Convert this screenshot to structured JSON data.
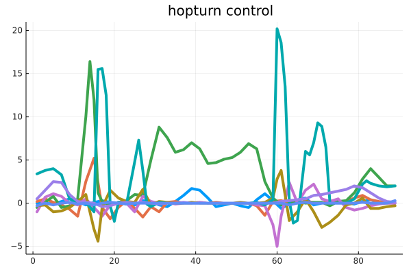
{
  "chart_data": {
    "type": "line",
    "title": "hopturn control",
    "xlabel": "",
    "ylabel": "",
    "xlim": [
      -1.7,
      90.9
    ],
    "ylim": [
      -5.9,
      21.0
    ],
    "xticks": [
      0,
      20,
      40,
      60,
      80
    ],
    "yticks": [
      -5,
      0,
      5,
      10,
      15,
      20
    ],
    "grid": true,
    "legend": "none",
    "series": [
      {
        "color": "#009AFA",
        "x": [
          1,
          3,
          5,
          7,
          9,
          11,
          13,
          15,
          17,
          19,
          21,
          23,
          25,
          27,
          29,
          31,
          33,
          35,
          37,
          39,
          41,
          43,
          45,
          47,
          49,
          51,
          53,
          55,
          57,
          59,
          61,
          63,
          65,
          67,
          69,
          71,
          73,
          75,
          77,
          79,
          81,
          83,
          85,
          87,
          89
        ],
        "y": [
          0,
          0,
          -0.1,
          0.2,
          0.5,
          0.2,
          -0.2,
          0.1,
          0.3,
          0.1,
          0,
          -0.1,
          -0.2,
          0.3,
          0.2,
          -0.2,
          -0.4,
          0.2,
          0.9,
          1.7,
          1.5,
          0.6,
          -0.4,
          -0.2,
          0,
          -0.3,
          -0.5,
          0.4,
          1.1,
          0.3,
          -0.6,
          -0.1,
          0.4,
          0.6,
          -0.2,
          0,
          0.1,
          0.2,
          0,
          -0.1,
          0.2,
          0.4,
          0.1,
          0,
          0
        ]
      },
      {
        "color": "#E36F47",
        "x": [
          1,
          3,
          5,
          7,
          9,
          11,
          13,
          15,
          17,
          19,
          21,
          23,
          25,
          27,
          29,
          31,
          33,
          35,
          37,
          39,
          41,
          43,
          45,
          47,
          49,
          51,
          53,
          55,
          57,
          59,
          61,
          63,
          65,
          67,
          69,
          71,
          73,
          75,
          77,
          79,
          81,
          83,
          85,
          87,
          89
        ],
        "y": [
          0.2,
          0.5,
          0.1,
          -0.2,
          -0.7,
          -1.5,
          2.5,
          5.2,
          -0.5,
          -1.8,
          -0.5,
          0.3,
          -0.6,
          -1.6,
          -0.4,
          -1.0,
          0.1,
          0.2,
          0,
          0,
          0.1,
          0,
          0.1,
          0,
          0,
          0,
          0,
          -0.3,
          -1.4,
          0.2,
          0.3,
          0.1,
          0,
          0.2,
          0.1,
          0,
          0.3,
          0.1,
          0.2,
          0.6,
          0.9,
          0.4,
          0.2,
          0,
          0
        ]
      },
      {
        "color": "#3EA44E",
        "x": [
          1,
          3,
          5,
          7,
          9,
          11,
          13,
          14,
          15,
          16,
          17,
          19,
          21,
          23,
          25,
          27,
          29,
          31,
          33,
          35,
          37,
          39,
          41,
          43,
          45,
          47,
          49,
          51,
          53,
          55,
          57,
          59,
          61,
          63,
          65,
          67,
          69,
          71,
          73,
          75,
          77,
          79,
          81,
          83,
          85,
          87,
          89
        ],
        "y": [
          -0.5,
          0.1,
          0.8,
          -0.5,
          -0.3,
          0.5,
          10.0,
          16.4,
          12.0,
          1.2,
          0.2,
          -0.3,
          0.1,
          0.3,
          1.0,
          0.9,
          5.0,
          8.8,
          7.6,
          5.9,
          6.2,
          7.0,
          6.3,
          4.6,
          4.7,
          5.1,
          5.3,
          5.9,
          6.9,
          6.3,
          2.5,
          0.6,
          -0.2,
          0.1,
          0.2,
          0,
          0.1,
          0.1,
          -0.3,
          0.2,
          0.3,
          1.2,
          2.8,
          4.0,
          3.0,
          2.0,
          2.0
        ]
      },
      {
        "color": "#C371D2",
        "x": [
          1,
          3,
          5,
          7,
          9,
          11,
          13,
          15,
          17,
          19,
          21,
          23,
          25,
          27,
          29,
          31,
          33,
          35,
          37,
          39,
          41,
          43,
          45,
          47,
          49,
          51,
          53,
          55,
          57,
          59,
          60,
          61,
          63,
          65,
          67,
          69,
          71,
          73,
          75,
          77,
          79,
          81,
          83,
          85,
          87,
          89
        ],
        "y": [
          -1.0,
          0.7,
          1.1,
          0.8,
          0,
          -0.2,
          0.5,
          -0.5,
          -1.5,
          -0.2,
          0.1,
          0,
          -1.0,
          0.8,
          0.2,
          0,
          0.1,
          -0.1,
          0,
          0,
          0.1,
          0,
          0,
          0,
          0,
          0,
          0,
          -0.2,
          -0.3,
          -2.5,
          -5.0,
          -1.5,
          2.4,
          0,
          1.5,
          2.2,
          0.5,
          0.2,
          0.5,
          -0.5,
          -0.8,
          -0.6,
          -0.3,
          -0.1,
          0,
          0
        ]
      },
      {
        "color": "#AC8E18",
        "x": [
          1,
          3,
          5,
          7,
          9,
          11,
          13,
          15,
          16,
          17,
          19,
          21,
          23,
          25,
          27,
          29,
          31,
          33,
          35,
          37,
          39,
          41,
          43,
          45,
          47,
          49,
          51,
          53,
          55,
          57,
          59,
          60,
          61,
          63,
          65,
          67,
          69,
          71,
          73,
          75,
          77,
          79,
          81,
          83,
          85,
          87,
          89
        ],
        "y": [
          -0.3,
          -0.2,
          -1.0,
          -0.9,
          -0.5,
          0.2,
          1.0,
          -3.0,
          -4.4,
          -0.5,
          1.5,
          0.6,
          0.2,
          0.1,
          1.6,
          -0.2,
          0.2,
          0.1,
          0,
          0,
          0.1,
          0,
          0,
          0,
          0,
          0,
          0.1,
          0,
          0,
          0.1,
          0.6,
          2.8,
          3.8,
          -2.0,
          -1.0,
          0.5,
          -1.0,
          -2.8,
          -2.2,
          -1.4,
          -0.2,
          0,
          0.6,
          -0.6,
          -0.6,
          -0.4,
          -0.3
        ]
      },
      {
        "color": "#00A9AD",
        "x": [
          1,
          3,
          5,
          7,
          9,
          11,
          13,
          15,
          16,
          17,
          18,
          19,
          20,
          21,
          23,
          25,
          26,
          27,
          28,
          29,
          31,
          33,
          35,
          37,
          39,
          41,
          43,
          45,
          47,
          49,
          51,
          53,
          55,
          57,
          59,
          60,
          61,
          62,
          63,
          64,
          65,
          67,
          68,
          69,
          70,
          71,
          72,
          73,
          75,
          77,
          79,
          81,
          82,
          83,
          85,
          87,
          89
        ],
        "y": [
          3.4,
          3.8,
          4.0,
          3.3,
          0.5,
          0,
          0.1,
          -1.0,
          15.5,
          15.6,
          12.5,
          -0.3,
          -2.1,
          0.1,
          -0.1,
          4.8,
          7.3,
          3.8,
          -0.1,
          -0.4,
          0.1,
          0,
          0,
          0,
          0,
          0,
          0,
          0,
          0,
          0,
          0,
          0,
          0.1,
          -0.2,
          0.4,
          20.2,
          18.6,
          13.5,
          0.3,
          -2.3,
          -2.0,
          6.0,
          5.6,
          7.0,
          9.3,
          8.9,
          6.5,
          0,
          0,
          0,
          0.5,
          2.2,
          2.6,
          2.3,
          2.0,
          1.9,
          2.0
        ]
      },
      {
        "color": "#9B7FE9",
        "x": [
          1,
          3,
          5,
          7,
          9,
          11,
          13,
          15,
          17,
          19,
          21,
          23,
          25,
          27,
          29,
          31,
          33,
          35,
          37,
          39,
          41,
          43,
          45,
          47,
          49,
          51,
          53,
          55,
          57,
          59,
          61,
          63,
          65,
          67,
          69,
          71,
          73,
          75,
          77,
          79,
          81,
          83,
          85,
          87,
          89
        ],
        "y": [
          0.5,
          1.5,
          2.5,
          2.4,
          1.0,
          0.2,
          0.1,
          0,
          -0.4,
          -0.3,
          0,
          0.1,
          0,
          0.1,
          0,
          -0.1,
          0,
          0,
          0.1,
          0,
          0,
          0,
          0,
          0,
          0,
          0,
          0,
          0,
          0,
          0,
          0.2,
          0.3,
          0.4,
          0.5,
          0.9,
          1.0,
          1.2,
          1.4,
          1.6,
          2.0,
          1.8,
          1.2,
          0.6,
          0.2,
          0.1
        ]
      },
      {
        "color": "#608CF6",
        "x": [
          1,
          3,
          5,
          7,
          9,
          11,
          13,
          15,
          17,
          19,
          21,
          23,
          25,
          27,
          29,
          31,
          33,
          35,
          37,
          39,
          41,
          43,
          45,
          47,
          49,
          51,
          53,
          55,
          57,
          59,
          61,
          63,
          65,
          67,
          69,
          71,
          73,
          75,
          77,
          79,
          81,
          83,
          85,
          87,
          89
        ],
        "y": [
          -0.3,
          0,
          -0.2,
          0,
          0.1,
          -0.1,
          0,
          -0.2,
          0,
          0.1,
          0,
          -0.1,
          0,
          0,
          0,
          0,
          0,
          0,
          0,
          0,
          0,
          0,
          0,
          0,
          0,
          0,
          0,
          0,
          0,
          0,
          0,
          -0.2,
          0,
          0.1,
          0,
          0,
          0,
          0,
          0,
          0,
          0.1,
          0,
          0,
          0,
          0.3
        ]
      }
    ]
  }
}
